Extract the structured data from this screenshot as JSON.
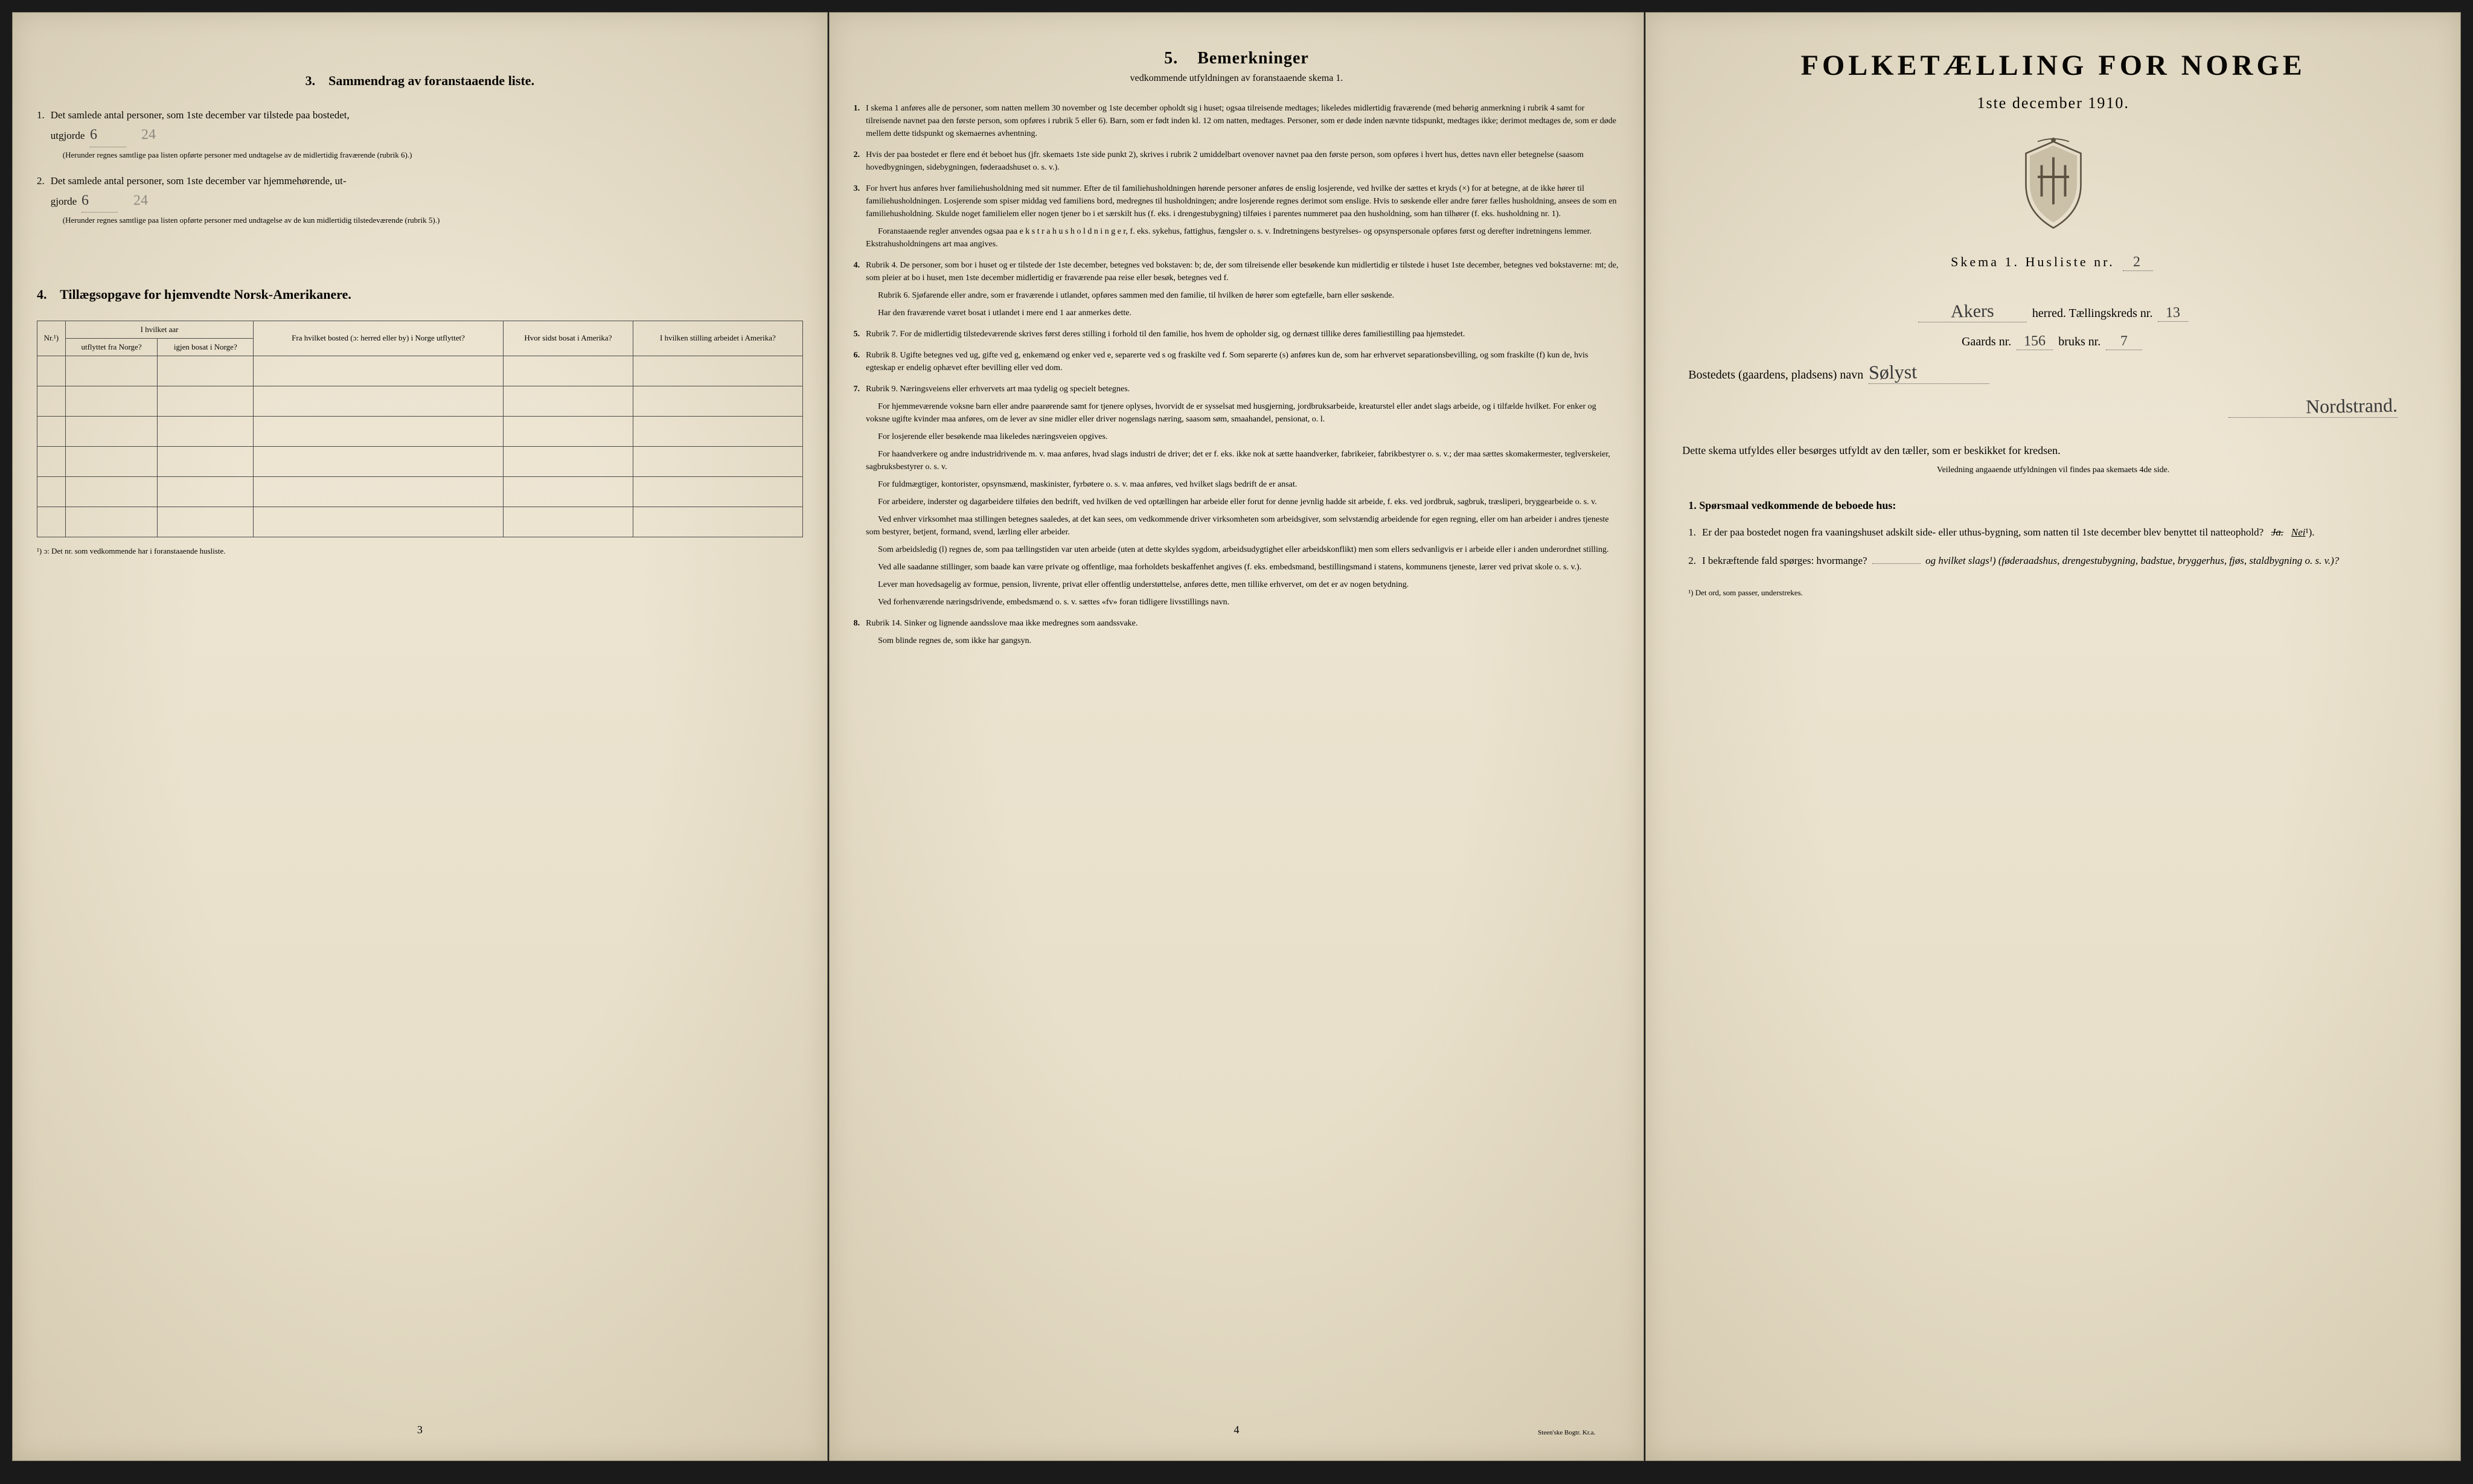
{
  "panel3": {
    "section_num": "3.",
    "section_title": "Sammendrag av foranstaaende liste.",
    "item1_num": "1.",
    "item1_text_a": "Det samlede antal personer, som 1ste december var tilstede paa bostedet,",
    "item1_text_b": "utgjorde",
    "item1_handwritten": "6",
    "item1_handwritten2": "24",
    "item1_note": "(Herunder regnes samtlige paa listen opførte personer med undtagelse av de midlertidig fraværende (rubrik 6).)",
    "item2_num": "2.",
    "item2_text_a": "Det samlede antal personer, som 1ste december var hjemmehørende, ut-",
    "item2_text_b": "gjorde",
    "item2_handwritten": "6",
    "item2_handwritten2": "24",
    "item2_note": "(Herunder regnes samtlige paa listen opførte personer med undtagelse av de kun midlertidig tilstedeværende (rubrik 5).)",
    "section4_num": "4.",
    "section4_title": "Tillægsopgave for hjemvendte Norsk-Amerikanere.",
    "table_headers": {
      "nr": "Nr.¹)",
      "hvilket_aar": "I hvilket aar",
      "utflyttet": "utflyttet fra Norge?",
      "igjen_bosat": "igjen bosat i Norge?",
      "fra_hvilket": "Fra hvilket bosted (ɔ: herred eller by) i Norge utflyttet?",
      "hvor_sidst": "Hvor sidst bosat i Amerika?",
      "hvilken_stilling": "I hvilken stilling arbeidet i Amerika?"
    },
    "footnote": "¹) ɔ: Det nr. som vedkommende har i foranstaaende husliste.",
    "page_num": "3"
  },
  "panel4": {
    "section_num": "5.",
    "section_title": "Bemerkninger",
    "section_subtitle": "vedkommende utfyldningen av foranstaaende skema 1.",
    "remarks": [
      {
        "num": "1.",
        "text": "I skema 1 anføres alle de personer, som natten mellem 30 november og 1ste december opholdt sig i huset; ogsaa tilreisende medtages; likeledes midlertidig fraværende (med behørig anmerkning i rubrik 4 samt for tilreisende navnet paa den første person, som opføres i rubrik 5 eller 6). Barn, som er født inden kl. 12 om natten, medtages. Personer, som er døde inden nævnte tidspunkt, medtages ikke; derimot medtages de, som er døde mellem dette tidspunkt og skemaernes avhentning."
      },
      {
        "num": "2.",
        "text": "Hvis der paa bostedet er flere end ét beboet hus (jfr. skemaets 1ste side punkt 2), skrives i rubrik 2 umiddelbart ovenover navnet paa den første person, som opføres i hvert hus, dettes navn eller betegnelse (saasom hovedbygningen, sidebygningen, føderaadshuset o. s. v.)."
      },
      {
        "num": "3.",
        "text": "For hvert hus anføres hver familiehusholdning med sit nummer. Efter de til familiehusholdningen hørende personer anføres de enslig losjerende, ved hvilke der sættes et kryds (×) for at betegne, at de ikke hører til familiehusholdningen. Losjerende som spiser middag ved familiens bord, medregnes til husholdningen; andre losjerende regnes derimot som enslige. Hvis to søskende eller andre fører fælles husholdning, ansees de som en familiehusholdning. Skulde noget familielem eller nogen tjener bo i et særskilt hus (f. eks. i drengestubygning) tilføies i parentes nummeret paa den husholdning, som han tilhører (f. eks. husholdning nr. 1).",
        "sub": [
          "Foranstaaende regler anvendes ogsaa paa e k s t r a h u s h o l d n i n g e r, f. eks. sykehus, fattighus, fængsler o. s. v. Indretningens bestyrelses- og opsynspersonale opføres først og derefter indretningens lemmer. Ekstrahusholdningens art maa angives."
        ]
      },
      {
        "num": "4.",
        "text": "Rubrik 4. De personer, som bor i huset og er tilstede der 1ste december, betegnes ved bokstaven: b; de, der som tilreisende eller besøkende kun midlertidig er tilstede i huset 1ste december, betegnes ved bokstaverne: mt; de, som pleier at bo i huset, men 1ste december midlertidig er fraværende paa reise eller besøk, betegnes ved f.",
        "sub": [
          "Rubrik 6. Sjøfarende eller andre, som er fraværende i utlandet, opføres sammen med den familie, til hvilken de hører som egtefælle, barn eller søskende.",
          "Har den fraværende været bosat i utlandet i mere end 1 aar anmerkes dette."
        ]
      },
      {
        "num": "5.",
        "text": "Rubrik 7. For de midlertidig tilstedeværende skrives først deres stilling i forhold til den familie, hos hvem de opholder sig, og dernæst tillike deres familiestilling paa hjemstedet."
      },
      {
        "num": "6.",
        "text": "Rubrik 8. Ugifte betegnes ved ug, gifte ved g, enkemænd og enker ved e, separerte ved s og fraskilte ved f. Som separerte (s) anføres kun de, som har erhvervet separationsbevilling, og som fraskilte (f) kun de, hvis egteskap er endelig ophævet efter bevilling eller ved dom."
      },
      {
        "num": "7.",
        "text": "Rubrik 9. Næringsveiens eller erhvervets art maa tydelig og specielt betegnes.",
        "sub": [
          "For hjemmeværende voksne barn eller andre paarørende samt for tjenere oplyses, hvorvidt de er sysselsat med husgjerning, jordbruksarbeide, kreaturstel eller andet slags arbeide, og i tilfælde hvilket. For enker og voksne ugifte kvinder maa anføres, om de lever av sine midler eller driver nogenslags næring, saasom søm, smaahandel, pensionat, o. l.",
          "For losjerende eller besøkende maa likeledes næringsveien opgives.",
          "For haandverkere og andre industridrivende m. v. maa anføres, hvad slags industri de driver; det er f. eks. ikke nok at sætte haandverker, fabrikeier, fabrikbestyrer o. s. v.; der maa sættes skomakermester, teglverskeier, sagbruksbestyrer o. s. v.",
          "For fuldmægtiger, kontorister, opsynsmænd, maskinister, fyrbøtere o. s. v. maa anføres, ved hvilket slags bedrift de er ansat.",
          "For arbeidere, inderster og dagarbeidere tilføies den bedrift, ved hvilken de ved optællingen har arbeide eller forut for denne jevnlig hadde sit arbeide, f. eks. ved jordbruk, sagbruk, træsliperi, bryggearbeide o. s. v.",
          "Ved enhver virksomhet maa stillingen betegnes saaledes, at det kan sees, om vedkommende driver virksomheten som arbeidsgiver, som selvstændig arbeidende for egen regning, eller om han arbeider i andres tjeneste som bestyrer, betjent, formand, svend, lærling eller arbeider.",
          "Som arbeidsledig (l) regnes de, som paa tællingstiden var uten arbeide (uten at dette skyldes sygdom, arbeidsudygtighet eller arbeidskonflikt) men som ellers sedvanligvis er i arbeide eller i anden underordnet stilling.",
          "Ved alle saadanne stillinger, som baade kan være private og offentlige, maa forholdets beskaffenhet angives (f. eks. embedsmand, bestillingsmand i statens, kommunens tjeneste, lærer ved privat skole o. s. v.).",
          "Lever man hovedsagelig av formue, pension, livrente, privat eller offentlig understøttelse, anføres dette, men tillike erhvervet, om det er av nogen betydning.",
          "Ved forhenværende næringsdrivende, embedsmænd o. s. v. sættes «fv» foran tidligere livsstillings navn."
        ]
      },
      {
        "num": "8.",
        "text": "Rubrik 14. Sinker og lignende aandsslove maa ikke medregnes som aandssvake.",
        "sub": [
          "Som blinde regnes de, som ikke har gangsyn."
        ]
      }
    ],
    "page_num": "4",
    "printer": "Steen'ske Bogtr. Kr.a."
  },
  "cover": {
    "title": "FOLKETÆLLING FOR NORGE",
    "date": "1ste december 1910.",
    "schema_label": "Skema 1.  Husliste nr.",
    "schema_handwritten": "2",
    "herred_handwritten": "Akers",
    "herred_label": "herred.  Tællingskreds nr.",
    "kreds_handwritten": "13",
    "gaards_label": "Gaards nr.",
    "gaards_handwritten": "156",
    "bruks_label": "bruks nr.",
    "bruks_handwritten": "7",
    "bosted_label": "Bostedets (gaardens, pladsens) navn",
    "bosted_handwritten": "Sølyst",
    "bosted_handwritten2": "Nordstrand.",
    "instruction": "Dette skema utfyldes eller besørges utfyldt av den tæller, som er beskikket for kredsen.",
    "instruction_small": "Veiledning angaaende utfyldningen vil findes paa skemaets 4de side.",
    "q_header": "1. Spørsmaal vedkommende de beboede hus:",
    "q1_num": "1.",
    "q1_text": "Er der paa bostedet nogen fra vaaningshuset adskilt side- eller uthus-bygning, som natten til 1ste december blev benyttet til natteophold?",
    "q1_ja": "Ja.",
    "q1_nei": "Nei",
    "q1_sup": "¹).",
    "q2_num": "2.",
    "q2_text": "I bekræftende fald spørges: hvormange?",
    "q2_text2": "og hvilket slags¹) (føderaadshus, drengestubygning, badstue, bryggerhus, fjøs, staldbygning o. s. v.)?",
    "footnote": "¹) Det ord, som passer, understrekes."
  }
}
